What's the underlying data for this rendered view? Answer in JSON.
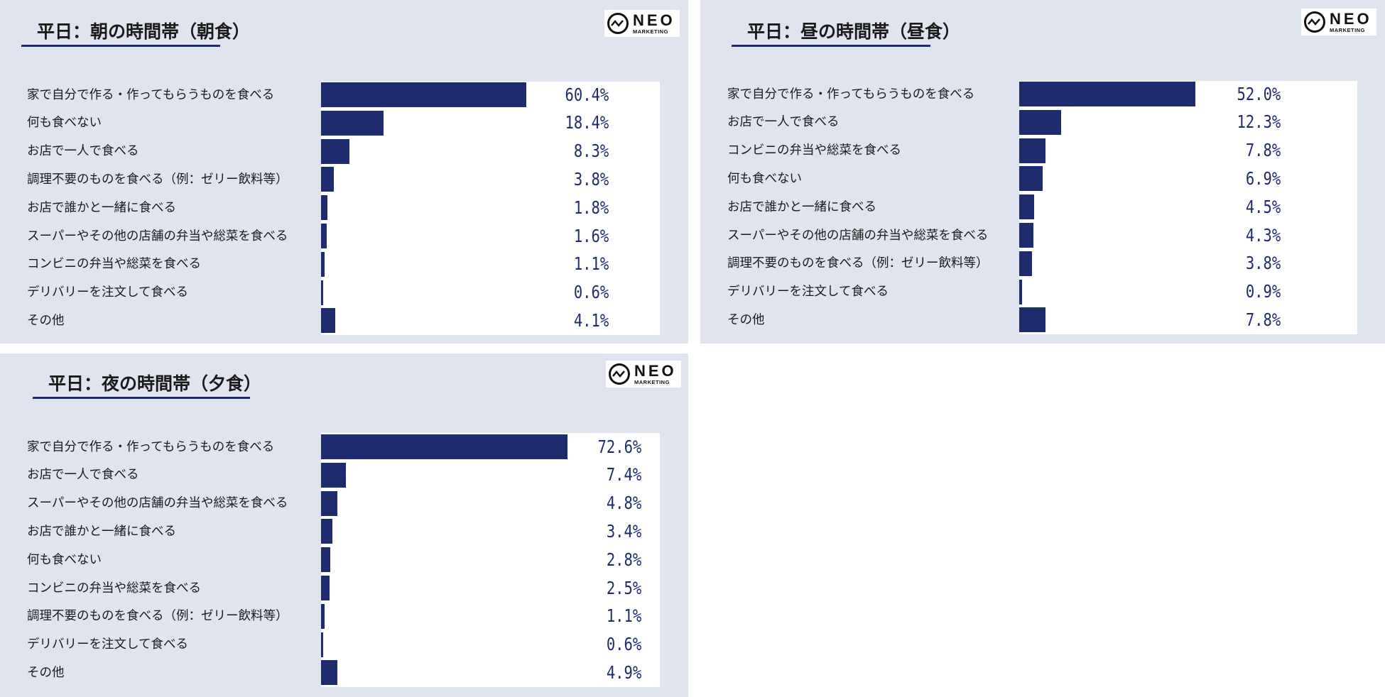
{
  "brand": {
    "name": "NEO",
    "sub": "MARKETING"
  },
  "colors": {
    "bar": "#1e2c6e",
    "panel_bg": "#dfe4ee",
    "plot_bg": "#ffffff"
  },
  "chart_data": [
    {
      "type": "bar",
      "orientation": "horizontal",
      "title": "平日：朝の時間帯（朝食）",
      "categories": [
        "家で自分で作る・作ってもらうものを食べる",
        "何も食べない",
        "お店で一人で食べる",
        "調理不要のものを食べる（例：ゼリー飲料等）",
        "お店で誰かと一緒に食べる",
        "スーパーやその他の店舗の弁当や総菜を食べる",
        "コンビニの弁当や総菜を食べる",
        "デリバリーを注文して食べる",
        "その他"
      ],
      "values": [
        60.4,
        18.4,
        8.3,
        3.8,
        1.8,
        1.6,
        1.1,
        0.6,
        4.1
      ],
      "labels": [
        "60.4%",
        "18.4%",
        "8.3%",
        "3.8%",
        "1.8%",
        "1.6%",
        "1.1%",
        "0.6%",
        "4.1%"
      ],
      "unit": "%",
      "xlim": [
        0,
        100
      ]
    },
    {
      "type": "bar",
      "orientation": "horizontal",
      "title": "平日：昼の時間帯（昼食）",
      "categories": [
        "家で自分で作る・作ってもらうものを食べる",
        "お店で一人で食べる",
        "コンビニの弁当や総菜を食べる",
        "何も食べない",
        "お店で誰かと一緒に食べる",
        "スーパーやその他の店舗の弁当や総菜を食べる",
        "調理不要のものを食べる（例：ゼリー飲料等）",
        "デリバリーを注文して食べる",
        "その他"
      ],
      "values": [
        52.0,
        12.3,
        7.8,
        6.9,
        4.5,
        4.3,
        3.8,
        0.9,
        7.8
      ],
      "labels": [
        "52.0%",
        "12.3%",
        "7.8%",
        "6.9%",
        "4.5%",
        "4.3%",
        "3.8%",
        "0.9%",
        "7.8%"
      ],
      "unit": "%",
      "xlim": [
        0,
        100
      ]
    },
    {
      "type": "bar",
      "orientation": "horizontal",
      "title": "平日：夜の時間帯（夕食）",
      "categories": [
        "家で自分で作る・作ってもらうものを食べる",
        "お店で一人で食べる",
        "スーパーやその他の店舗の弁当や総菜を食べる",
        "お店で誰かと一緒に食べる",
        "何も食べない",
        "コンビニの弁当や総菜を食べる",
        "調理不要のものを食べる（例：ゼリー飲料等）",
        "デリバリーを注文して食べる",
        "その他"
      ],
      "values": [
        72.6,
        7.4,
        4.8,
        3.4,
        2.8,
        2.5,
        1.1,
        0.6,
        4.9
      ],
      "labels": [
        "72.6%",
        "7.4%",
        "4.8%",
        "3.4%",
        "2.8%",
        "2.5%",
        "1.1%",
        "0.6%",
        "4.9%"
      ],
      "unit": "%",
      "xlim": [
        0,
        100
      ]
    }
  ]
}
